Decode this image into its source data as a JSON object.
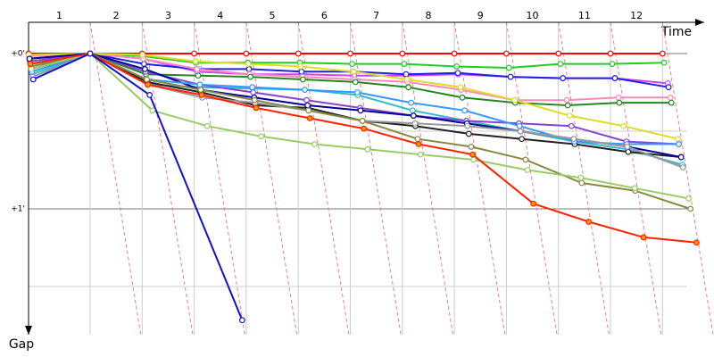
{
  "chart_data": {
    "type": "line",
    "x_label": "Time",
    "y_label": "Gap",
    "x": [
      0,
      1,
      2,
      3,
      4,
      5,
      6,
      7,
      8,
      9,
      10,
      11,
      12
    ],
    "xlim": [
      0,
      12.8
    ],
    "xticks": [
      {
        "value": 0.5,
        "label": "1"
      },
      {
        "value": 1.5,
        "label": "2"
      },
      {
        "value": 2.5,
        "label": "3"
      },
      {
        "value": 3.5,
        "label": "4"
      },
      {
        "value": 4.5,
        "label": "5"
      },
      {
        "value": 5.5,
        "label": "6"
      },
      {
        "value": 6.5,
        "label": "7"
      },
      {
        "value": 7.5,
        "label": "8"
      },
      {
        "value": 8.5,
        "label": "9"
      },
      {
        "value": 9.5,
        "label": "10"
      },
      {
        "value": 10.5,
        "label": "11"
      },
      {
        "value": 11.5,
        "label": "12"
      }
    ],
    "ylim": [
      0,
      108.6
    ],
    "yticks": [
      {
        "value": 0,
        "label": "+0'"
      },
      {
        "value": 30,
        "label": ""
      },
      {
        "value": 60,
        "label": "+1'"
      },
      {
        "value": 90,
        "label": ""
      }
    ],
    "series": [
      {
        "color": "#ff0000",
        "marker": "#ffffff",
        "values": [
          0,
          0,
          0,
          0,
          0,
          0,
          0,
          0,
          0,
          0,
          0,
          0,
          0
        ]
      },
      {
        "color": "#22cc22",
        "marker": "#ffffff",
        "values": [
          3,
          0,
          1,
          3.5,
          3.5,
          3.5,
          4,
          4,
          5,
          5.5,
          4,
          4,
          3.5
        ]
      },
      {
        "color": "#cc44ff",
        "marker": "#ffffff",
        "values": [
          2,
          0,
          2,
          7,
          8,
          8,
          8.5,
          8.5,
          8,
          9,
          9.5,
          9.5,
          11.5
        ]
      },
      {
        "color": "#2222dd",
        "marker": "#ffffff",
        "values": [
          4,
          0,
          4,
          6,
          6,
          7,
          7,
          8,
          7.5,
          9,
          9.5,
          9.5,
          13
        ]
      },
      {
        "color": "#ff88bb",
        "marker": "#ffffff",
        "values": [
          1,
          0,
          2,
          6,
          8,
          9,
          10,
          11,
          14,
          18,
          18,
          17,
          17
        ]
      },
      {
        "color": "#228822",
        "marker": "#ffffff",
        "values": [
          5,
          0,
          8,
          8.5,
          9,
          10,
          11,
          13,
          17,
          19,
          20,
          19,
          19
        ]
      },
      {
        "color": "#dddd22",
        "marker": "#ffffff",
        "values": [
          0.5,
          0,
          0.5,
          3,
          4,
          5,
          7,
          10,
          13,
          18,
          24,
          28,
          33
        ]
      },
      {
        "color": "#33bbcc",
        "marker": "#ffffff",
        "values": [
          8,
          0,
          12,
          13,
          13.5,
          14,
          16,
          22,
          26,
          30,
          34,
          37,
          43
        ]
      },
      {
        "color": "#8844cc",
        "marker": "#ffffff",
        "values": [
          3,
          0,
          7,
          12,
          15,
          18,
          21,
          24,
          26,
          27,
          28,
          34,
          35
        ]
      },
      {
        "color": "#222222",
        "marker": "#ffffff",
        "values": [
          6,
          0,
          11,
          15,
          20,
          21,
          26,
          28,
          31,
          33,
          35,
          38,
          40
        ]
      },
      {
        "color": "#000099",
        "marker": "#ffffff",
        "values": [
          2,
          0,
          6,
          14,
          17,
          20,
          22,
          24,
          27,
          30,
          33,
          36,
          40
        ]
      },
      {
        "color": "#3399ff",
        "marker": "#ffffff",
        "values": [
          7,
          0,
          10,
          12,
          13,
          14,
          15,
          19,
          22,
          28,
          34,
          35,
          35
        ]
      },
      {
        "color": "#999999",
        "marker": "#ffffff",
        "values": [
          9,
          0,
          12,
          17,
          19,
          22,
          26,
          27,
          28,
          30,
          33,
          36,
          44
        ]
      },
      {
        "color": "#888844",
        "marker": "#ffffff",
        "values": [
          5,
          0,
          10,
          14,
          18,
          22,
          26,
          33,
          36,
          41,
          50,
          53,
          60
        ]
      },
      {
        "color": "#99cc66",
        "marker": "#ffffff",
        "values": [
          6,
          0,
          22,
          28,
          32,
          35,
          37,
          39,
          41,
          45,
          48,
          52,
          56
        ]
      },
      {
        "color": "#ff2200",
        "marker": "#ff9900",
        "values": [
          4,
          0,
          12,
          16,
          21,
          25,
          29,
          35,
          39,
          58,
          65,
          71,
          73
        ]
      },
      {
        "color": "#1111cc",
        "marker": "#ffffff",
        "values": [
          10,
          0,
          16,
          103,
          null,
          null,
          null,
          null,
          null,
          null,
          null,
          null,
          null
        ]
      }
    ]
  }
}
